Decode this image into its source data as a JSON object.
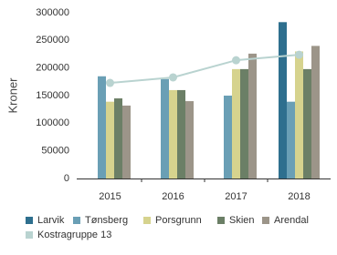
{
  "chart_data": {
    "type": "bar",
    "y_label": "Kroner",
    "categories": [
      "2015",
      "2016",
      "2017",
      "2018"
    ],
    "series": [
      {
        "name": "Larvik",
        "color": "#2e6f8e",
        "values": [
          null,
          null,
          null,
          283000
        ]
      },
      {
        "name": "Tønsberg",
        "color": "#6a9fb5",
        "values": [
          185000,
          180000,
          150000,
          139000
        ]
      },
      {
        "name": "Porsgrunn",
        "color": "#d6d38e",
        "values": [
          139000,
          160000,
          198000,
          230000
        ]
      },
      {
        "name": "Skien",
        "color": "#6b7f66",
        "values": [
          145000,
          160000,
          198000,
          198000
        ]
      },
      {
        "name": "Arendal",
        "color": "#9c9589",
        "values": [
          132000,
          140000,
          226000,
          240000
        ]
      },
      {
        "name": "Kostragruppe 13",
        "color": "#b9d3d0",
        "type": "line",
        "values": [
          173000,
          183000,
          214000,
          224000
        ]
      }
    ],
    "ylim": [
      0,
      300000
    ],
    "yticks": [
      0,
      50000,
      100000,
      150000,
      200000,
      250000,
      300000
    ],
    "grid": false
  }
}
